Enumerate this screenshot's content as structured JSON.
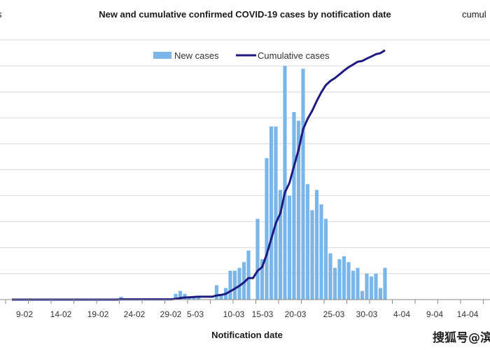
{
  "chart_data": {
    "type": "bar",
    "title": "New and cumulative confirmed COVID-19 cases by notification date",
    "xlabel": "Notification date",
    "ylabel": "",
    "right_axis_label_partial": "cumul",
    "left_axis_label_partial": "s",
    "grid": true,
    "legend_position": "top-center",
    "x_tick_labels": [
      "9-02",
      "14-02",
      "19-02",
      "24-02",
      "29-02",
      "5-03",
      "10-03",
      "15-03",
      "20-03",
      "25-03",
      "30-03",
      "4-04",
      "9-04",
      "14-04"
    ],
    "series": [
      {
        "name": "New cases",
        "type": "bar",
        "color": "#7ab6e8",
        "values": [
          0,
          0,
          0,
          0,
          0,
          0,
          0,
          0,
          0,
          0,
          0,
          0,
          0,
          0,
          0,
          0,
          0,
          0,
          0,
          0,
          0,
          0,
          0,
          0,
          1,
          0,
          0,
          0,
          0,
          0,
          0,
          0,
          0,
          0,
          0,
          0,
          2,
          3,
          2,
          1,
          1,
          1,
          0,
          0,
          0,
          5,
          2,
          4,
          10,
          10,
          11,
          13,
          17,
          0,
          28,
          14,
          49,
          60,
          60,
          38,
          81,
          36,
          65,
          62,
          80,
          40,
          31,
          38,
          33,
          28,
          16,
          11,
          14,
          15,
          13,
          10,
          11,
          3,
          9,
          8,
          9,
          4,
          11
        ]
      },
      {
        "name": "Cumulative cases",
        "type": "line",
        "color": "#1f1a80",
        "values": [
          0,
          0,
          0,
          0,
          0,
          0,
          0,
          0,
          0,
          0,
          0,
          0,
          0,
          0,
          0,
          0,
          0,
          0,
          0,
          0,
          0,
          0,
          0,
          0,
          1,
          1,
          1,
          1,
          1,
          1,
          1,
          1,
          1,
          1,
          1,
          1,
          3,
          6,
          8,
          9,
          10,
          11,
          11,
          11,
          11,
          16,
          18,
          22,
          32,
          42,
          53,
          66,
          83,
          83,
          111,
          125,
          174,
          234,
          294,
          332,
          413,
          449,
          514,
          576,
          656,
          696,
          727,
          765,
          798,
          826,
          842,
          853,
          867,
          882,
          895,
          905,
          916,
          919,
          928,
          936,
          945,
          949,
          960
        ]
      }
    ]
  },
  "legend": {
    "new_cases": "New cases",
    "cumulative_cases": "Cumulative cases"
  },
  "watermark": "搜狐号@滨",
  "colors": {
    "bar": "#7ab6e8",
    "line": "#1f1a80",
    "grid": "#d9d9d9"
  }
}
